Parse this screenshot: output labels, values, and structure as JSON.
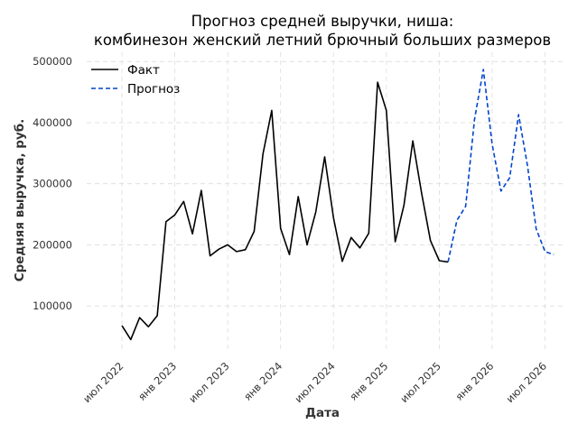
{
  "chart_data": {
    "type": "line",
    "title_line1": "Прогноз средней выручки, ниша:",
    "title_line2": "комбинезон женский летний брючный больших размеров",
    "xlabel": "Дата",
    "ylabel": "Средняя выручка, руб.",
    "x_tick_labels": [
      "июл 2022",
      "янв 2023",
      "июл 2023",
      "янв 2024",
      "июл 2024",
      "янв 2025",
      "июл 2025",
      "янв 2026",
      "июл 2026"
    ],
    "y_ticks": [
      100000,
      200000,
      300000,
      400000,
      500000
    ],
    "y_tick_labels": [
      "100000",
      "200000",
      "300000",
      "400000",
      "500000"
    ],
    "ylim": [
      25000,
      515000
    ],
    "xlim": [
      "2022-03",
      "2026-09"
    ],
    "grid": true,
    "legend_position": "top-left",
    "series": [
      {
        "name": "Факт",
        "color": "#000000",
        "style": "solid",
        "points": [
          [
            "2022-07",
            68000
          ],
          [
            "2022-08",
            45000
          ],
          [
            "2022-09",
            81000
          ],
          [
            "2022-10",
            66000
          ],
          [
            "2022-11",
            84000
          ],
          [
            "2022-12",
            238000
          ],
          [
            "2023-01",
            249000
          ],
          [
            "2023-02",
            271000
          ],
          [
            "2023-03",
            218000
          ],
          [
            "2023-04",
            289000
          ],
          [
            "2023-05",
            182000
          ],
          [
            "2023-06",
            193000
          ],
          [
            "2023-07",
            200000
          ],
          [
            "2023-08",
            189000
          ],
          [
            "2023-09",
            192000
          ],
          [
            "2023-10",
            222000
          ],
          [
            "2023-11",
            349000
          ],
          [
            "2023-12",
            420000
          ],
          [
            "2024-01",
            227000
          ],
          [
            "2024-02",
            184000
          ],
          [
            "2024-03",
            279000
          ],
          [
            "2024-04",
            200000
          ],
          [
            "2024-05",
            254000
          ],
          [
            "2024-06",
            344000
          ],
          [
            "2024-07",
            244000
          ],
          [
            "2024-08",
            173000
          ],
          [
            "2024-09",
            212000
          ],
          [
            "2024-10",
            195000
          ],
          [
            "2024-11",
            219000
          ],
          [
            "2024-12",
            466000
          ],
          [
            "2025-01",
            420000
          ],
          [
            "2025-02",
            205000
          ],
          [
            "2025-03",
            265000
          ],
          [
            "2025-04",
            370000
          ],
          [
            "2025-05",
            284000
          ],
          [
            "2025-06",
            207000
          ],
          [
            "2025-07",
            174000
          ],
          [
            "2025-08",
            172000
          ]
        ]
      },
      {
        "name": "Прогноз",
        "color": "#0044cc",
        "style": "dashed",
        "points": [
          [
            "2025-08",
            172000
          ],
          [
            "2025-09",
            240000
          ],
          [
            "2025-10",
            263000
          ],
          [
            "2025-11",
            405000
          ],
          [
            "2025-12",
            487000
          ],
          [
            "2026-01",
            365000
          ],
          [
            "2026-02",
            288000
          ],
          [
            "2026-03",
            310000
          ],
          [
            "2026-04",
            413000
          ],
          [
            "2026-05",
            330000
          ],
          [
            "2026-06",
            226000
          ],
          [
            "2026-07",
            189000
          ],
          [
            "2026-08",
            184000
          ]
        ]
      }
    ]
  }
}
